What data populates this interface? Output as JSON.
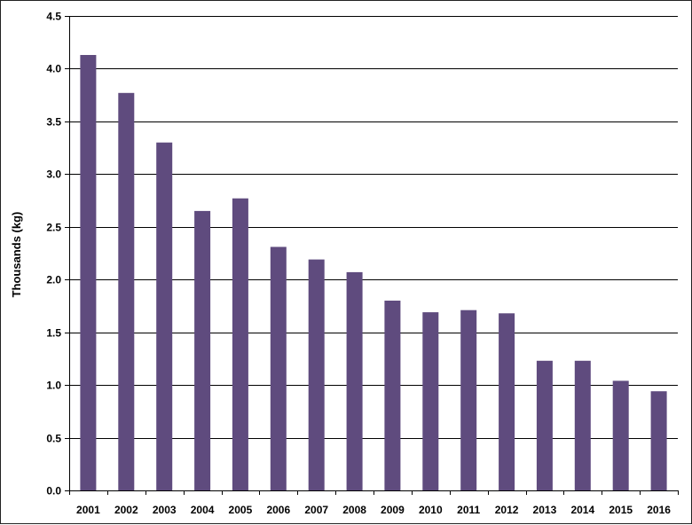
{
  "chart_data": {
    "type": "bar",
    "categories": [
      "2001",
      "2002",
      "2003",
      "2004",
      "2005",
      "2006",
      "2007",
      "2008",
      "2009",
      "2010",
      "2011",
      "2012",
      "2013",
      "2014",
      "2015",
      "2016"
    ],
    "values": [
      4.13,
      3.77,
      3.3,
      2.65,
      2.77,
      2.31,
      2.19,
      2.07,
      1.8,
      1.69,
      1.71,
      1.68,
      1.23,
      1.23,
      1.04,
      0.94
    ],
    "ylabel": "Thousands (kg)",
    "xlabel": "",
    "ylim": [
      0,
      4.5
    ],
    "yticks": [
      "0.0",
      "0.5",
      "1.0",
      "1.5",
      "2.0",
      "2.5",
      "3.0",
      "3.5",
      "4.0",
      "4.5"
    ],
    "bar_color": "#5f4b7e",
    "grid": true,
    "legend": "none"
  }
}
